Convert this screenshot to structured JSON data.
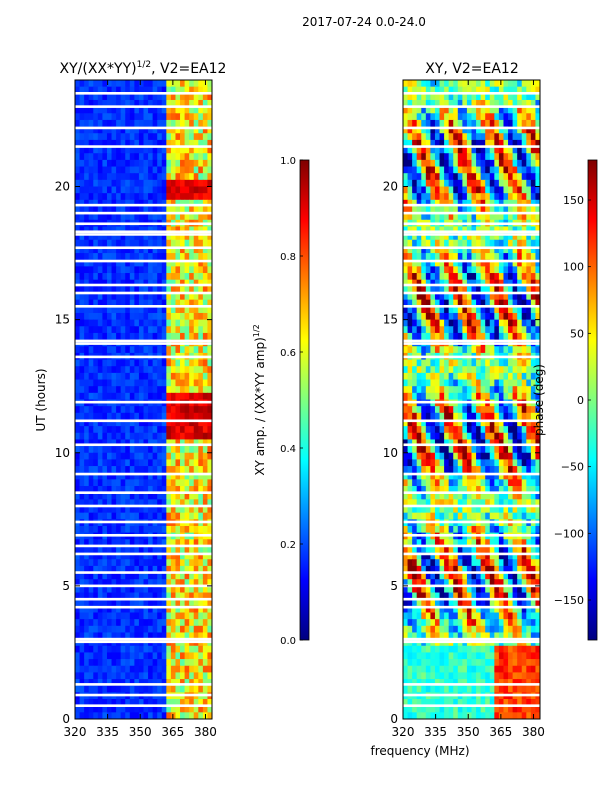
{
  "figure_title": "2017-07-24 0.0-24.0",
  "shared_xlabel": "frequency (MHz)",
  "chart_data": [
    {
      "type": "heatmap",
      "title": "XY/(XX*YY)",
      "title_sup": "1/2",
      "title_suffix": ", V2=EA12",
      "ylabel": "UT (hours)",
      "xlim": [
        320,
        383
      ],
      "ylim": [
        0,
        24
      ],
      "xticks": [
        320,
        335,
        350,
        365,
        380
      ],
      "yticks": [
        0,
        5,
        10,
        15,
        20
      ],
      "colorbar": {
        "label": "XY amp. / (XX*YY amp)",
        "label_sup": "1/2",
        "range": [
          0.0,
          1.0
        ],
        "ticks": [
          "0.0",
          "0.2",
          "0.4",
          "0.6",
          "0.8",
          "1.0"
        ],
        "tick_values": [
          0.0,
          0.2,
          0.4,
          0.6,
          0.8,
          1.0
        ],
        "colormap": "jet"
      }
    },
    {
      "type": "heatmap",
      "title": "XY, V2=EA12",
      "ylabel": "",
      "xlim": [
        320,
        383
      ],
      "ylim": [
        0,
        24
      ],
      "xticks": [
        320,
        335,
        350,
        365,
        380
      ],
      "yticks": [
        0,
        5,
        10,
        15,
        20
      ],
      "colorbar": {
        "label": "phase (deg)",
        "range": [
          -180,
          180
        ],
        "ticks": [
          "150",
          "100",
          "50",
          "0",
          "−50",
          "−100",
          "−150"
        ],
        "tick_values": [
          150,
          100,
          50,
          0,
          -50,
          -100,
          -150
        ],
        "colormap": "jet"
      }
    }
  ]
}
